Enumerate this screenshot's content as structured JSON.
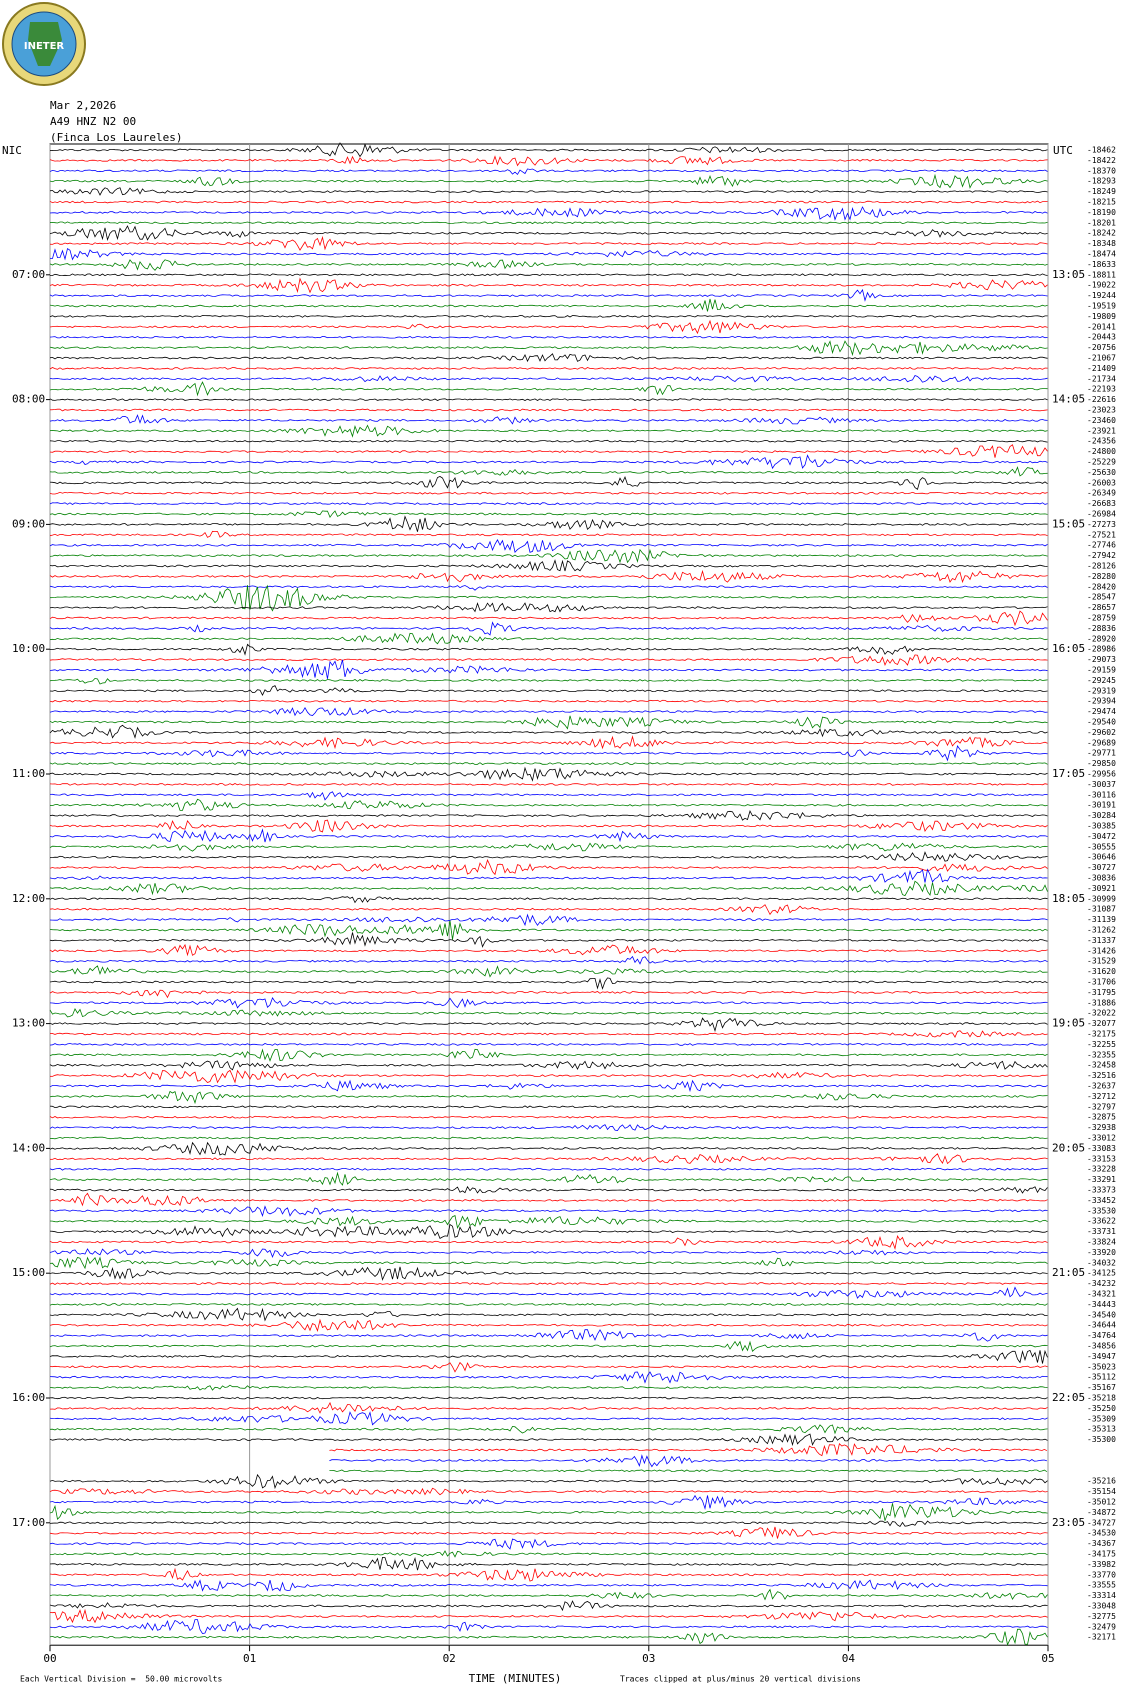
{
  "header": {
    "logo": "INETER",
    "date": "Mar 2,2026",
    "station": "A49 HNZ N2 00",
    "site": "(Finca Los Laureles)"
  },
  "chart_data": {
    "type": "helicorder",
    "left_zone": "NIC",
    "right_zone": "UTC",
    "left_times": [
      "07:00",
      "08:00",
      "09:00",
      "10:00",
      "11:00",
      "12:00",
      "13:00",
      "14:00",
      "15:00",
      "16:00",
      "17:00"
    ],
    "right_times": [
      "13:05",
      "14:05",
      "15:05",
      "16:05",
      "17:05",
      "18:05",
      "19:05",
      "20:05",
      "21:05",
      "22:05",
      "23:05"
    ],
    "trace_offsets": [
      -18462,
      -18422,
      -18370,
      -18293,
      -18249,
      -18215,
      -18190,
      -18201,
      -18242,
      -18348,
      -18474,
      -18633,
      -18811,
      -19022,
      -19244,
      -19519,
      -19809,
      -20141,
      -20443,
      -20756,
      -21067,
      -21409,
      -21734,
      -22193,
      -22616,
      -23023,
      -23460,
      -23921,
      -24356,
      -24800,
      -25229,
      -25630,
      -26003,
      -26349,
      -26683,
      -26984,
      -27273,
      -27521,
      -27746,
      -27942,
      -28126,
      -28280,
      -28420,
      -28547,
      -28657,
      -28759,
      -28836,
      -28920,
      -28986,
      -29073,
      -29159,
      -29245,
      -29319,
      -29394,
      -29474,
      -29540,
      -29602,
      -29689,
      -29771,
      -29850,
      -29956,
      -30037,
      -30116,
      -30191,
      -30284,
      -30385,
      -30472,
      -30555,
      -30646,
      -30727,
      -30836,
      -30921,
      -30999,
      -31087,
      -31139,
      -31262,
      -31337,
      -31426,
      -31529,
      -31620,
      -31706,
      -31795,
      -31886,
      -32022,
      -32077,
      -32175,
      -32255,
      -32355,
      -32458,
      -32516,
      -32637,
      -32712,
      -32797,
      -32875,
      -32938,
      -33012,
      -33083,
      -33153,
      -33228,
      -33291,
      -33373,
      -33452,
      -33530,
      -33622,
      -33731,
      -33824,
      -33920,
      -34032,
      -34125,
      -34232,
      -34321,
      -34443,
      -34540,
      -34644,
      -34764,
      -34856,
      -34947,
      -35023,
      -35112,
      -35167,
      -35218,
      -35250,
      -35309,
      -35313,
      -35300,
      null,
      null,
      null,
      -35216,
      -35154,
      -35012,
      -34872,
      -34727,
      -34530,
      -34367,
      -34175,
      -33982,
      -33770,
      -33555,
      -33314,
      -33048,
      -32775,
      -32479,
      -32171
    ],
    "trace_colors": [
      "#000000",
      "#ff0000",
      "#0000ff",
      "#008000"
    ],
    "xlim": [
      0,
      5
    ],
    "xticks": [
      {
        "value": 0,
        "label": "00"
      },
      {
        "value": 1,
        "label": "01"
      },
      {
        "value": 2,
        "label": "02"
      },
      {
        "value": 3,
        "label": "03"
      },
      {
        "value": 4,
        "label": "04"
      },
      {
        "value": 5,
        "label": "05"
      }
    ],
    "x_label": "TIME (MINUTES)",
    "scale_note": "Each Vertical Division =  50.00 microvolts",
    "clip_note": "Traces clipped at plus/minus 20 vertical divisions",
    "grid": true
  }
}
